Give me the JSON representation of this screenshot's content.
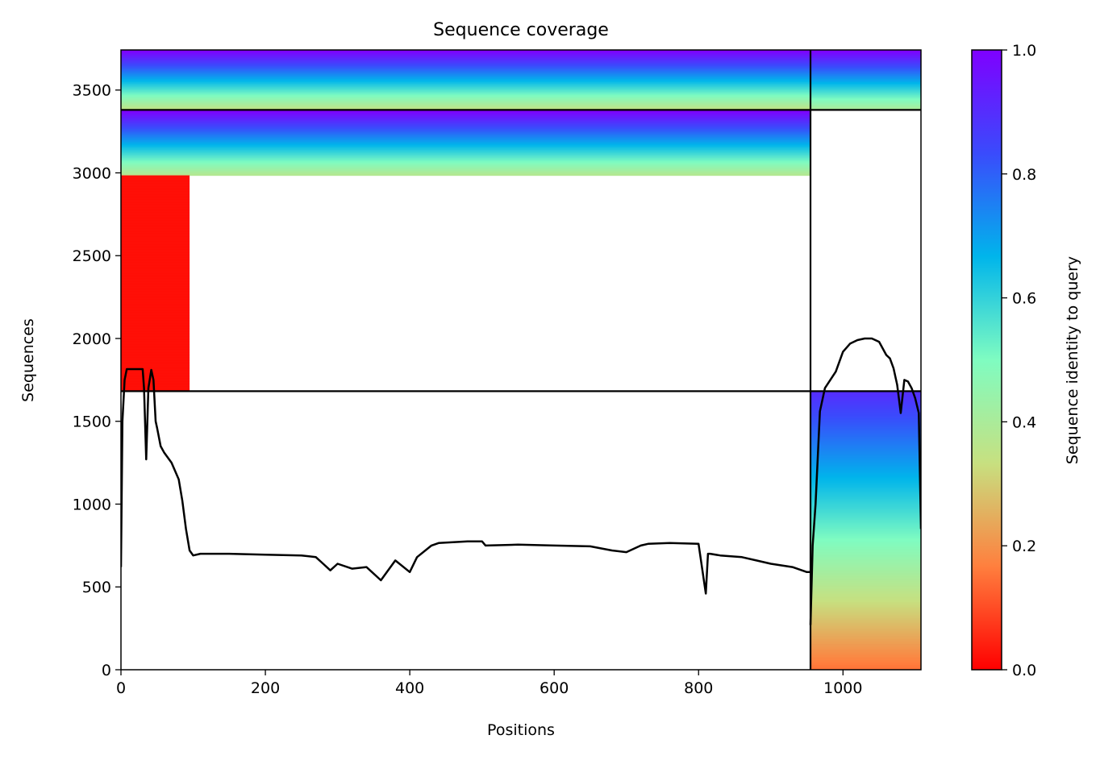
{
  "chart_data": {
    "type": "heatmap",
    "title": "Sequence coverage",
    "xlabel": "Positions",
    "ylabel": "Sequences",
    "xlim": [
      0,
      1108
    ],
    "ylim": [
      0,
      3742
    ],
    "xticks": [
      0,
      200,
      400,
      600,
      800,
      1000
    ],
    "yticks": [
      0,
      500,
      1000,
      1500,
      2000,
      2500,
      3000,
      3500
    ],
    "grid": false,
    "colorbar": {
      "label": "Sequence identity to query",
      "range": [
        0.0,
        1.0
      ],
      "ticks": [
        "0.0",
        "0.2",
        "0.4",
        "0.6",
        "0.8",
        "1.0"
      ],
      "colormap": "rainbow_r",
      "stops": [
        "#ff0000",
        "#ff7f3e",
        "#c7e080",
        "#7ffcc1",
        "#00b5eb",
        "#3a4bfc",
        "#7f00ff"
      ]
    },
    "separators": {
      "vertical_x": [
        955
      ],
      "horizontal_y": [
        1682,
        3380
      ]
    },
    "blocks": [
      {
        "name": "block-1",
        "x_range": [
          0,
          955
        ],
        "y_range": [
          3380,
          3742
        ],
        "identity_top": 1.0,
        "identity_bottom": 0.35
      },
      {
        "name": "block-1b",
        "x_range": [
          955,
          1108
        ],
        "y_range": [
          3380,
          3742
        ],
        "identity_top": 1.0,
        "identity_bottom": 0.4
      },
      {
        "name": "block-2",
        "x_range": [
          0,
          955
        ],
        "y_range": [
          2985,
          3380
        ],
        "identity_top": 1.0,
        "identity_bottom": 0.38
      },
      {
        "name": "block-2-low-identity",
        "x_range": [
          0,
          95
        ],
        "y_range": [
          1682,
          2985
        ],
        "identity": 0.02
      },
      {
        "name": "block-3",
        "x_range": [
          955,
          1108
        ],
        "y_range": [
          0,
          1682
        ],
        "identity_top": 0.9,
        "identity_bottom": 0.15
      }
    ],
    "coverage_line": {
      "color": "#000000",
      "segments": [
        {
          "x": [
            0,
            2,
            5,
            8,
            30,
            32,
            35,
            38,
            42,
            45,
            48,
            50,
            55,
            60,
            70,
            80,
            85,
            90,
            95,
            100,
            110,
            150,
            200,
            250,
            270,
            280,
            290,
            300,
            320,
            340,
            360,
            380,
            400,
            410,
            430,
            440,
            460,
            480,
            500,
            505,
            550,
            600,
            650,
            680,
            700,
            720,
            730,
            760,
            800,
            810,
            813,
            816,
            830,
            860,
            880,
            900,
            930,
            950,
            955
          ],
          "y": [
            620,
            1500,
            1750,
            1815,
            1815,
            1700,
            1270,
            1700,
            1810,
            1750,
            1500,
            1460,
            1350,
            1310,
            1250,
            1150,
            1020,
            850,
            720,
            690,
            700,
            700,
            695,
            690,
            680,
            640,
            600,
            640,
            610,
            620,
            540,
            660,
            590,
            680,
            750,
            765,
            770,
            775,
            775,
            750,
            755,
            750,
            745,
            720,
            710,
            750,
            760,
            765,
            760,
            460,
            700,
            700,
            690,
            680,
            660,
            640,
            620,
            590,
            590
          ]
        },
        {
          "x": [
            955,
            958,
            962,
            968,
            975,
            990,
            1000,
            1010,
            1020,
            1030,
            1040,
            1050,
            1060,
            1065,
            1070,
            1075,
            1080,
            1085,
            1090,
            1095,
            1100,
            1105,
            1108
          ],
          "y": [
            270,
            750,
            1000,
            1560,
            1700,
            1800,
            1920,
            1970,
            1990,
            2000,
            2000,
            1980,
            1900,
            1880,
            1820,
            1720,
            1550,
            1750,
            1740,
            1700,
            1640,
            1550,
            850
          ]
        }
      ]
    }
  }
}
